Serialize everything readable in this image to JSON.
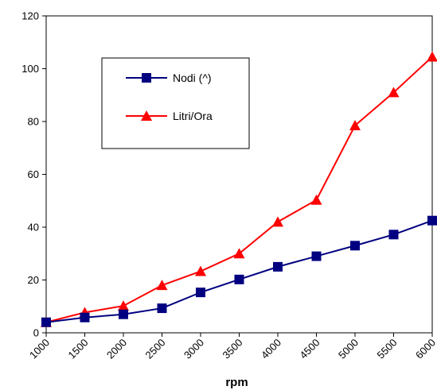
{
  "chart_data": {
    "type": "line",
    "title": "",
    "xlabel": "rpm",
    "ylabel": "",
    "categories": [
      "1000",
      "1500",
      "2000",
      "2500",
      "3000",
      "3500",
      "4000",
      "4500",
      "5000",
      "5500",
      "6000"
    ],
    "ylim": [
      0,
      120
    ],
    "yticks": [
      "0",
      "20",
      "40",
      "60",
      "80",
      "100",
      "120"
    ],
    "grid": false,
    "legend_position": "upper-left inside plot",
    "series": [
      {
        "name": "Nodi (^)",
        "color": "#000080",
        "marker": "square",
        "values": [
          4,
          5.8,
          7,
          9.3,
          15.3,
          20.2,
          25,
          29,
          33,
          37.2,
          42.5
        ]
      },
      {
        "name": "Litri/Ora",
        "color": "#ff0000",
        "marker": "triangle",
        "values": [
          4,
          7.7,
          10.2,
          18,
          23.3,
          30,
          42,
          50.3,
          78.5,
          91,
          104.5
        ]
      }
    ]
  }
}
